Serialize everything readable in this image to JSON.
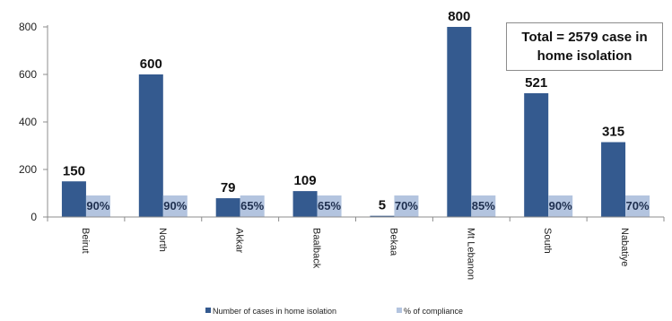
{
  "chart_data": {
    "type": "bar",
    "categories": [
      "Beirut",
      "North",
      "Akkar",
      "Baalback",
      "Bekaa",
      "Mt Lebanon",
      "South",
      "Nabatiye"
    ],
    "series": [
      {
        "name": "Number of cases in home isolation",
        "values": [
          150,
          600,
          79,
          109,
          5,
          800,
          521,
          315
        ],
        "color": "#345a8f"
      },
      {
        "name": "% of compliance",
        "values": [
          90,
          90,
          65,
          65,
          70,
          85,
          90,
          70
        ],
        "labels": [
          "90%",
          "90%",
          "65%",
          "65%",
          "70%",
          "85%",
          "90%",
          "70%"
        ],
        "color": "#b3c4df"
      }
    ],
    "yticks": [
      "0",
      "200",
      "400",
      "600",
      "800"
    ],
    "ylim": [
      0,
      800
    ],
    "annotation": "Total = 2579 case in home isolation",
    "legend_position": "bottom",
    "grid": false
  }
}
